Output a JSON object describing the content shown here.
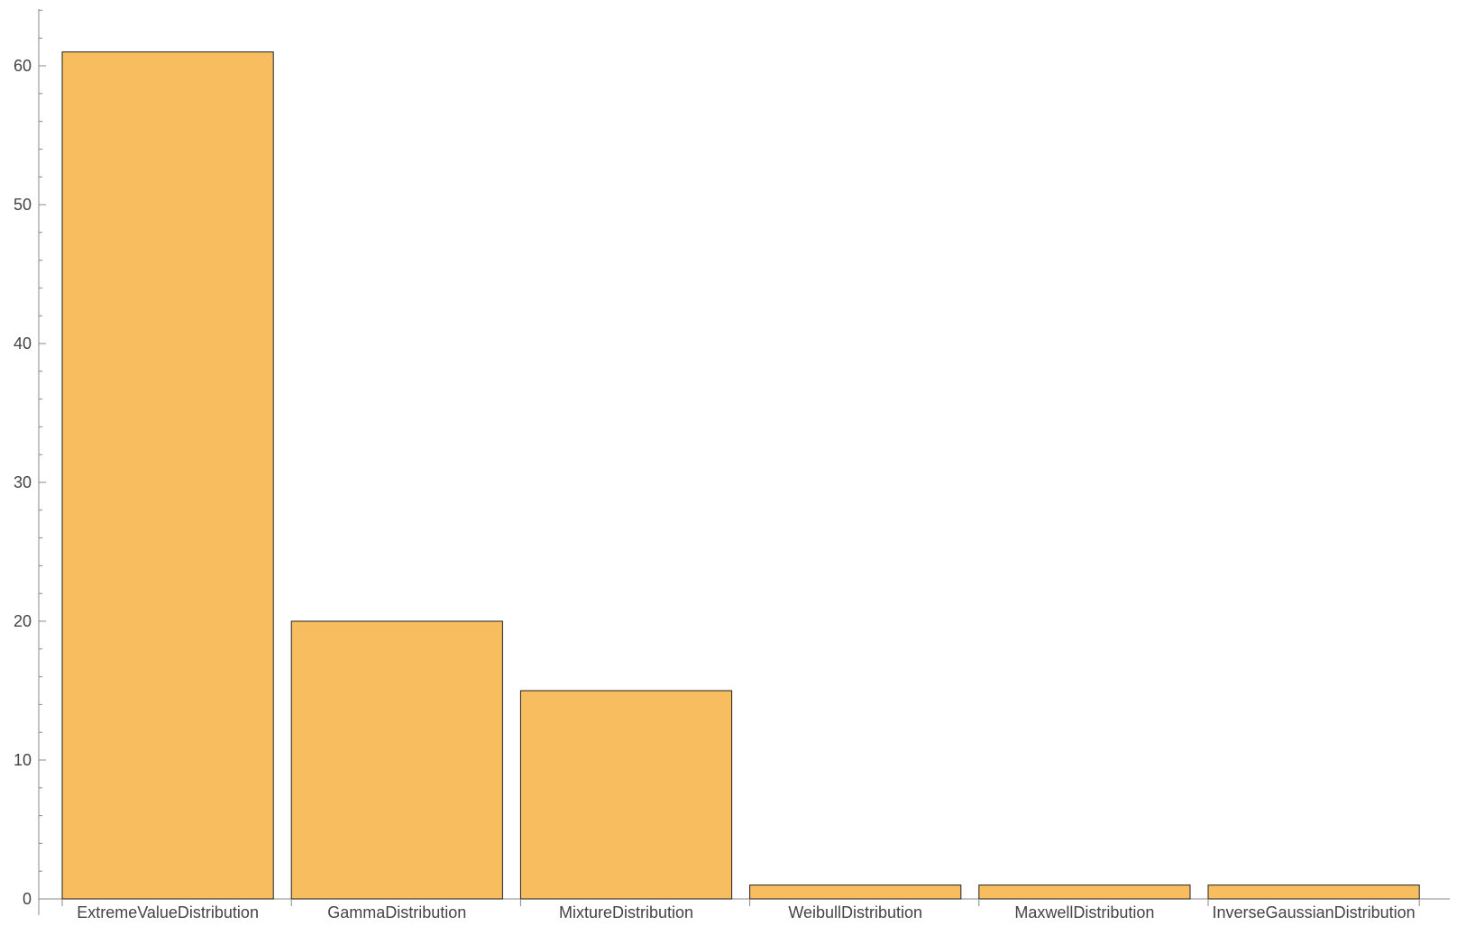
{
  "chart_data": {
    "type": "bar",
    "title": "",
    "xlabel": "",
    "ylabel": "",
    "categories": [
      "ExtremeValueDistribution",
      "GammaDistribution",
      "MixtureDistribution",
      "WeibullDistribution",
      "MaxwellDistribution",
      "InverseGaussianDistribution"
    ],
    "values": [
      61,
      20,
      15,
      1,
      1,
      1
    ],
    "ylim": [
      0,
      64
    ],
    "yticks": [
      0,
      10,
      20,
      30,
      40,
      50,
      60
    ],
    "grid": false,
    "legend": "none",
    "colors": {
      "bar_fill": "#f8bd5e",
      "bar_stroke": "#222222",
      "axis": "#888888",
      "text": "#444444"
    }
  }
}
